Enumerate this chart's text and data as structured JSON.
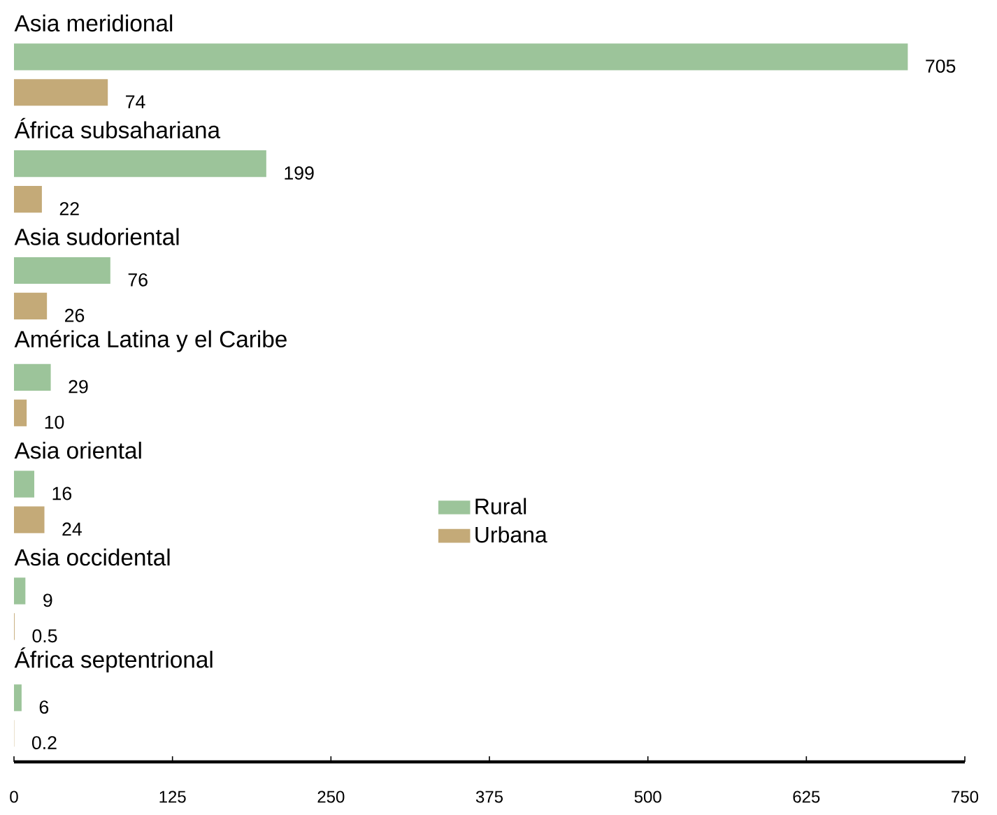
{
  "chart_data": {
    "type": "bar",
    "orientation": "horizontal",
    "categories": [
      "Asia meridional",
      "África subsahariana",
      "Asia sudoriental",
      "América Latina y el Caribe",
      "Asia oriental",
      "Asia occidental",
      "África septentrional"
    ],
    "series": [
      {
        "name": "Rural",
        "color": "#9cc49a",
        "values": [
          705,
          199,
          76,
          29,
          16,
          9,
          6
        ]
      },
      {
        "name": "Urbana",
        "color": "#c4aa78",
        "values": [
          74,
          22,
          26,
          10,
          24,
          0.5,
          0.2
        ]
      }
    ],
    "xlim": [
      0,
      750
    ],
    "xticks": [
      0,
      125,
      250,
      375,
      500,
      625,
      750
    ],
    "data_labels": true,
    "legend": "center",
    "grid": false
  }
}
